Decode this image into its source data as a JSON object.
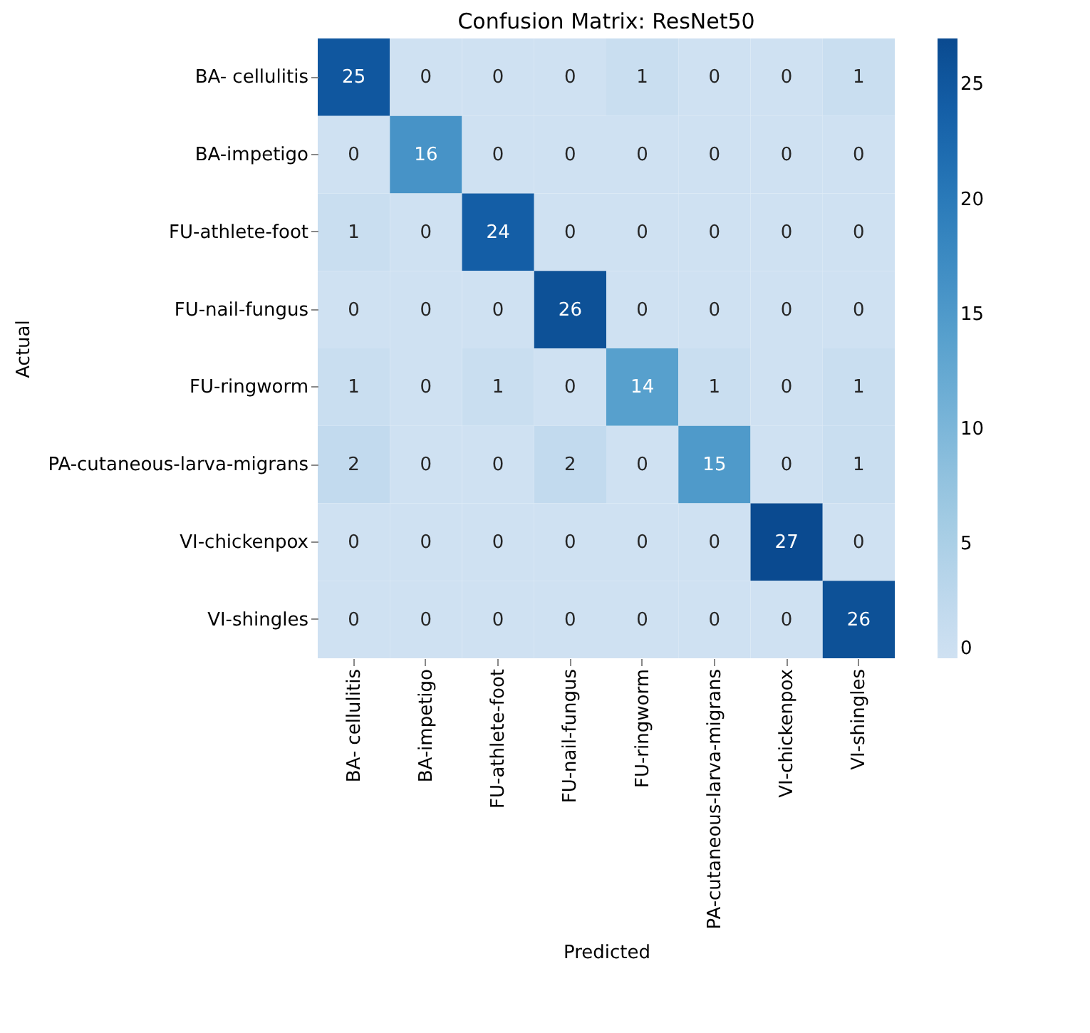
{
  "chart_data": {
    "type": "heatmap",
    "title": "Confusion Matrix: ResNet50",
    "xlabel": "Predicted",
    "ylabel": "Actual",
    "categories": [
      "BA- cellulitis",
      "BA-impetigo",
      "FU-athlete-foot",
      "FU-nail-fungus",
      "FU-ringworm",
      "PA-cutaneous-larva-migrans",
      "VI-chickenpox",
      "VI-shingles"
    ],
    "y_categories": [
      "BA- cellulitis",
      "BA-impetigo",
      "FU-athlete-foot",
      "FU-nail-fungus",
      "FU-ringworm",
      "PA-cutaneous-larva-migrans",
      "VI-chickenpox",
      "VI-shingles"
    ],
    "cells": [
      [
        25,
        0,
        0,
        0,
        1,
        0,
        0,
        1
      ],
      [
        0,
        16,
        0,
        0,
        0,
        0,
        0,
        0
      ],
      [
        1,
        0,
        24,
        0,
        0,
        0,
        0,
        0
      ],
      [
        0,
        0,
        0,
        26,
        0,
        0,
        0,
        0
      ],
      [
        1,
        0,
        1,
        0,
        14,
        1,
        0,
        1
      ],
      [
        2,
        0,
        0,
        2,
        0,
        15,
        0,
        1
      ],
      [
        0,
        0,
        0,
        0,
        0,
        0,
        27,
        0
      ],
      [
        0,
        0,
        0,
        0,
        0,
        0,
        0,
        26
      ]
    ],
    "clim": [
      0,
      27
    ],
    "cticks": [
      0,
      5,
      10,
      15,
      20,
      25
    ],
    "data_labels": true
  }
}
